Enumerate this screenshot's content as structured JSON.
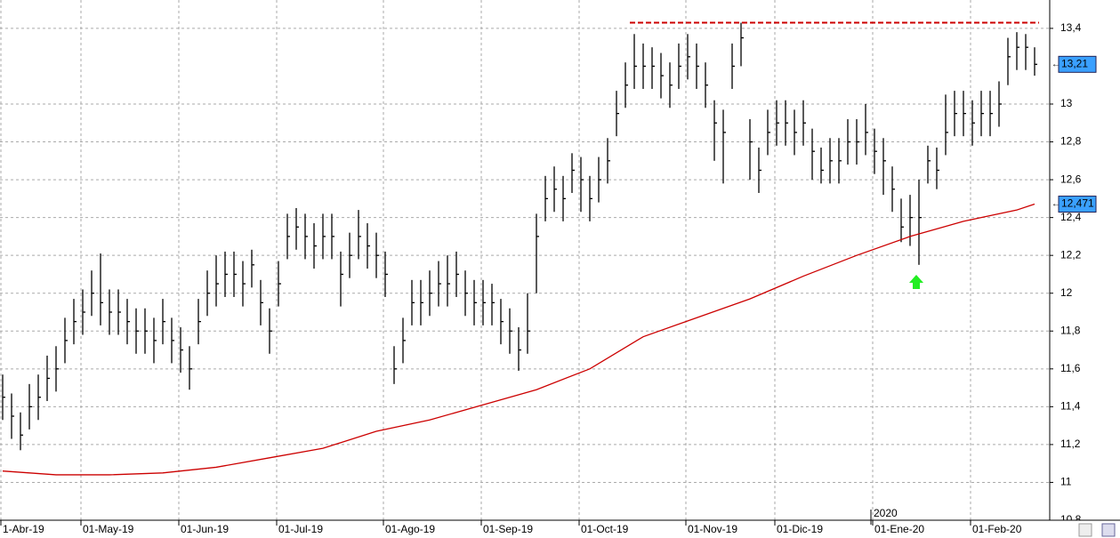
{
  "chart_data": {
    "type": "ohlc",
    "categories": [
      "1-Abr-19",
      null,
      null,
      null,
      null,
      null,
      null,
      null,
      null,
      "01-May-19",
      null,
      null,
      null,
      null,
      null,
      null,
      null,
      null,
      null,
      null,
      "01-Jun-19",
      null,
      null,
      null,
      null,
      null,
      null,
      null,
      null,
      null,
      null,
      "01-Jul-19",
      null,
      null,
      null,
      null,
      null,
      null,
      null,
      null,
      null,
      null,
      null,
      "01-Ago-19",
      null,
      null,
      null,
      null,
      null,
      null,
      null,
      null,
      null,
      null,
      "01-Sep-19",
      null,
      null,
      null,
      null,
      null,
      null,
      null,
      null,
      null,
      null,
      "01-Oct-19",
      null,
      null,
      null,
      null,
      null,
      null,
      null,
      null,
      null,
      null,
      null,
      "01-Nov-19",
      null,
      null,
      null,
      null,
      null,
      null,
      null,
      null,
      null,
      "01-Dic-19",
      null,
      null,
      null,
      null,
      null,
      null,
      null,
      null,
      null,
      null,
      "01-Ene-20",
      null,
      null,
      null,
      null,
      null,
      null,
      null,
      null,
      null,
      null,
      "01-Feb-20",
      null,
      null,
      null,
      null,
      null,
      null,
      null
    ],
    "high": [
      11.57,
      11.47,
      11.37,
      11.52,
      11.57,
      11.67,
      11.72,
      11.87,
      11.97,
      12.02,
      12.12,
      12.21,
      12.02,
      12.02,
      11.97,
      11.92,
      11.92,
      11.87,
      11.97,
      11.87,
      11.82,
      11.72,
      11.97,
      12.12,
      12.2,
      12.22,
      12.22,
      12.17,
      12.23,
      12.07,
      11.92,
      12.17,
      12.42,
      12.45,
      12.42,
      12.37,
      12.42,
      12.42,
      12.22,
      12.32,
      12.44,
      12.37,
      12.32,
      12.22,
      11.72,
      11.87,
      12.07,
      12.07,
      12.12,
      12.17,
      12.2,
      12.22,
      12.12,
      12.07,
      12.07,
      12.05,
      11.97,
      11.92,
      11.82,
      12.0,
      12.42,
      12.62,
      12.67,
      12.62,
      12.74,
      12.72,
      12.62,
      12.72,
      12.82,
      13.07,
      13.22,
      13.37,
      13.32,
      13.3,
      13.27,
      13.22,
      13.32,
      13.37,
      13.32,
      13.22,
      13.02,
      12.97,
      13.32,
      13.43,
      12.92,
      12.77,
      12.97,
      13.02,
      13.02,
      12.97,
      13.02,
      12.87,
      12.77,
      12.82,
      12.82,
      12.92,
      12.92,
      13.0,
      12.87,
      12.82,
      12.67,
      12.5,
      12.52,
      12.6,
      12.78,
      12.77,
      13.05,
      13.07,
      13.07,
      13.02,
      13.07,
      13.07,
      13.12,
      13.35,
      13.38,
      13.37,
      13.3
    ],
    "low": [
      11.33,
      11.23,
      11.17,
      11.28,
      11.33,
      11.43,
      11.48,
      11.63,
      11.73,
      11.78,
      11.88,
      11.83,
      11.78,
      11.78,
      11.73,
      11.68,
      11.68,
      11.63,
      11.73,
      11.63,
      11.58,
      11.49,
      11.73,
      11.88,
      11.93,
      11.98,
      11.98,
      11.93,
      12.03,
      11.83,
      11.68,
      11.93,
      12.18,
      12.23,
      12.18,
      12.13,
      12.18,
      12.18,
      11.93,
      12.08,
      12.18,
      12.13,
      12.08,
      11.98,
      11.52,
      11.63,
      11.83,
      11.83,
      11.88,
      11.93,
      11.93,
      11.98,
      11.88,
      11.83,
      11.83,
      11.83,
      11.73,
      11.68,
      11.59,
      11.68,
      12.0,
      12.38,
      12.43,
      12.38,
      12.53,
      12.43,
      12.38,
      12.48,
      12.58,
      12.83,
      12.98,
      13.08,
      13.08,
      13.08,
      13.03,
      12.98,
      13.08,
      13.13,
      13.08,
      12.98,
      12.7,
      12.58,
      13.08,
      13.2,
      12.6,
      12.53,
      12.73,
      12.78,
      12.78,
      12.73,
      12.78,
      12.6,
      12.58,
      12.58,
      12.58,
      12.68,
      12.68,
      12.73,
      12.63,
      12.52,
      12.43,
      12.27,
      12.25,
      12.15,
      12.58,
      12.55,
      12.73,
      12.83,
      12.83,
      12.78,
      12.83,
      12.83,
      12.88,
      13.1,
      13.18,
      13.18,
      13.15
    ],
    "close": [
      11.45,
      11.35,
      11.25,
      11.4,
      11.45,
      11.55,
      11.6,
      11.75,
      11.85,
      11.9,
      12.0,
      11.95,
      11.9,
      11.9,
      11.85,
      11.8,
      11.8,
      11.75,
      11.85,
      11.75,
      11.7,
      11.6,
      11.85,
      12.0,
      12.05,
      12.1,
      12.1,
      12.05,
      12.15,
      11.95,
      11.8,
      12.05,
      12.3,
      12.35,
      12.3,
      12.25,
      12.3,
      12.3,
      12.1,
      12.2,
      12.3,
      12.25,
      12.2,
      12.1,
      11.6,
      11.75,
      11.95,
      11.95,
      12.0,
      12.05,
      12.05,
      12.1,
      12.0,
      11.95,
      11.95,
      11.95,
      11.85,
      11.8,
      11.7,
      11.8,
      12.3,
      12.5,
      12.55,
      12.5,
      12.65,
      12.6,
      12.5,
      12.6,
      12.7,
      12.95,
      13.1,
      13.2,
      13.2,
      13.2,
      13.15,
      13.1,
      13.2,
      13.25,
      13.2,
      13.1,
      12.9,
      12.85,
      13.2,
      13.35,
      12.8,
      12.65,
      12.85,
      12.9,
      12.9,
      12.85,
      12.9,
      12.75,
      12.65,
      12.7,
      12.7,
      12.8,
      12.8,
      12.85,
      12.75,
      12.7,
      12.55,
      12.35,
      12.4,
      12.4,
      12.7,
      12.65,
      12.85,
      12.95,
      12.95,
      12.9,
      12.95,
      12.95,
      13.0,
      13.25,
      13.3,
      13.3,
      13.21
    ],
    "bar_color": "#000000",
    "moving_average": {
      "color": "#cc0000",
      "x": [
        0,
        6,
        12,
        18,
        24,
        30,
        36,
        42,
        48,
        54,
        60,
        66,
        72,
        78,
        84,
        90,
        96,
        102,
        108,
        114,
        116
      ],
      "values": [
        11.06,
        11.04,
        11.04,
        11.05,
        11.08,
        11.13,
        11.18,
        11.27,
        11.33,
        11.41,
        11.49,
        11.6,
        11.77,
        11.87,
        11.97,
        12.09,
        12.2,
        12.3,
        12.38,
        12.44,
        12.471
      ]
    },
    "resistance": {
      "value": 13.43,
      "color": "#cc0000",
      "x": [
        71,
        116
      ]
    },
    "last_labels": [
      {
        "value": 13.21,
        "label": "13,21"
      },
      {
        "value": 12.471,
        "label": "12,471"
      }
    ],
    "last_label_color": "#3aa0ff",
    "period_label": "2020",
    "ylim": [
      10.8,
      13.55
    ],
    "yticks": [
      {
        "value": 10.8,
        "label": "10,8"
      },
      11,
      {
        "value": 11.2,
        "label": "11,2"
      },
      {
        "value": 11.4,
        "label": "11,4"
      },
      {
        "value": 11.6,
        "label": "11,6"
      },
      {
        "value": 11.8,
        "label": "11,8"
      },
      12,
      {
        "value": 12.2,
        "label": "12,2"
      },
      {
        "value": 12.4,
        "label": "12,4"
      },
      {
        "value": 12.6,
        "label": "12,6"
      },
      {
        "value": 12.8,
        "label": "12,8"
      },
      13,
      {
        "value": 13.4,
        "label": "13,4"
      }
    ],
    "grid": true
  }
}
